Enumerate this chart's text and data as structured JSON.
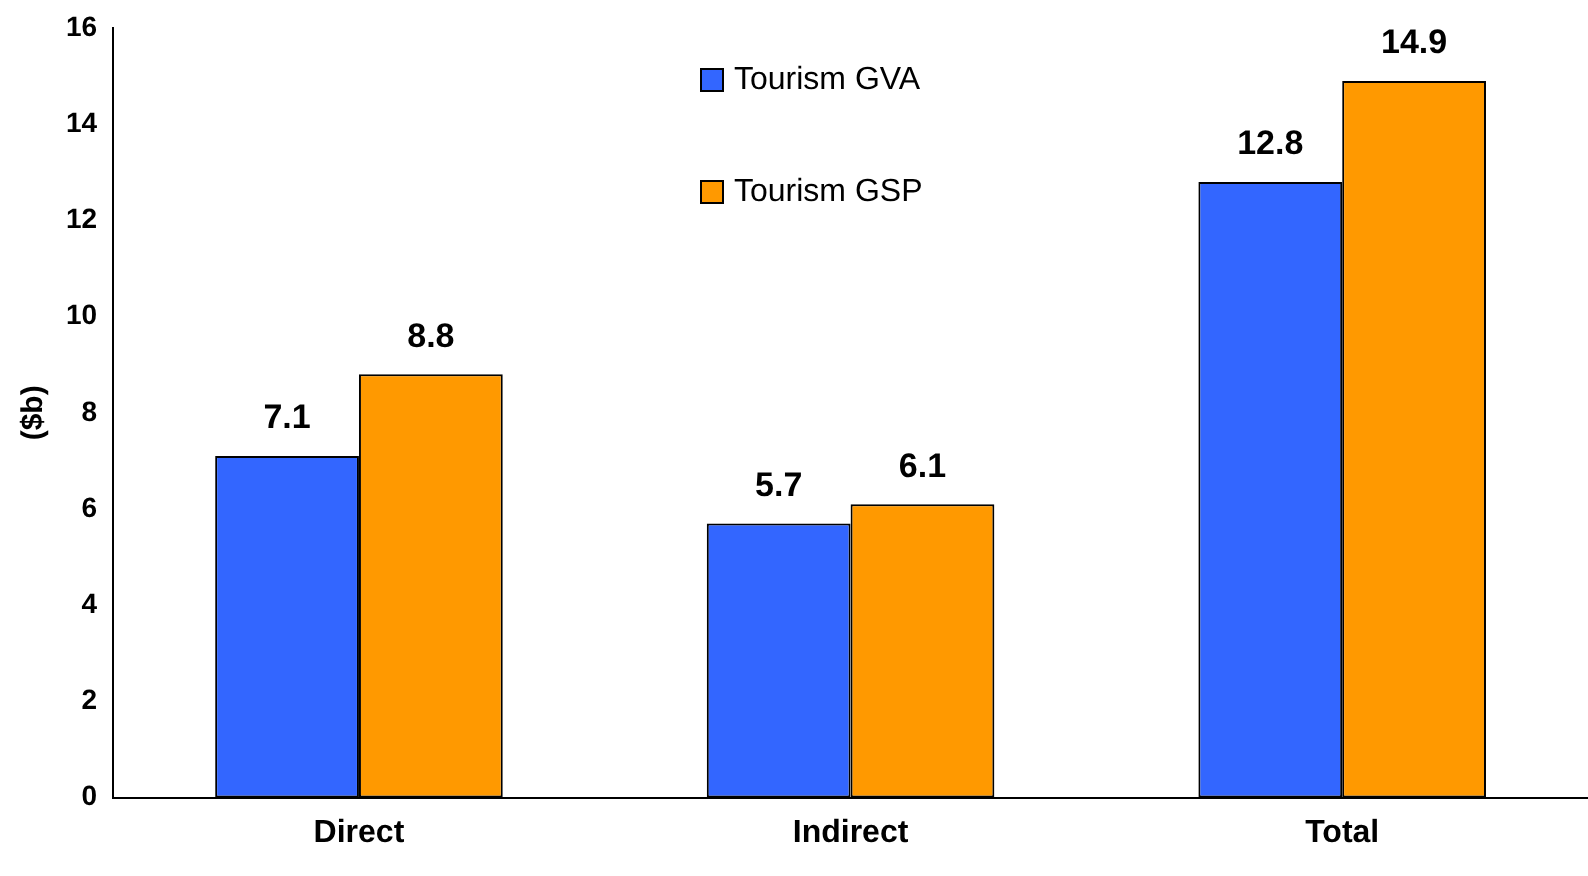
{
  "chart_data": {
    "type": "bar",
    "ylabel": "($b)",
    "categories": [
      "Direct",
      "Indirect",
      "Total"
    ],
    "series": [
      {
        "name": "Tourism GVA",
        "color": "#3366ff",
        "values": [
          7.1,
          5.7,
          12.8
        ]
      },
      {
        "name": "Tourism GSP",
        "color": "#ff9900",
        "values": [
          8.8,
          6.1,
          14.9
        ]
      }
    ],
    "ylim": [
      0,
      16
    ],
    "yticks": [
      0,
      2,
      4,
      6,
      8,
      10,
      12,
      14,
      16
    ],
    "grid": false,
    "legend": "top",
    "data_labels": true
  }
}
